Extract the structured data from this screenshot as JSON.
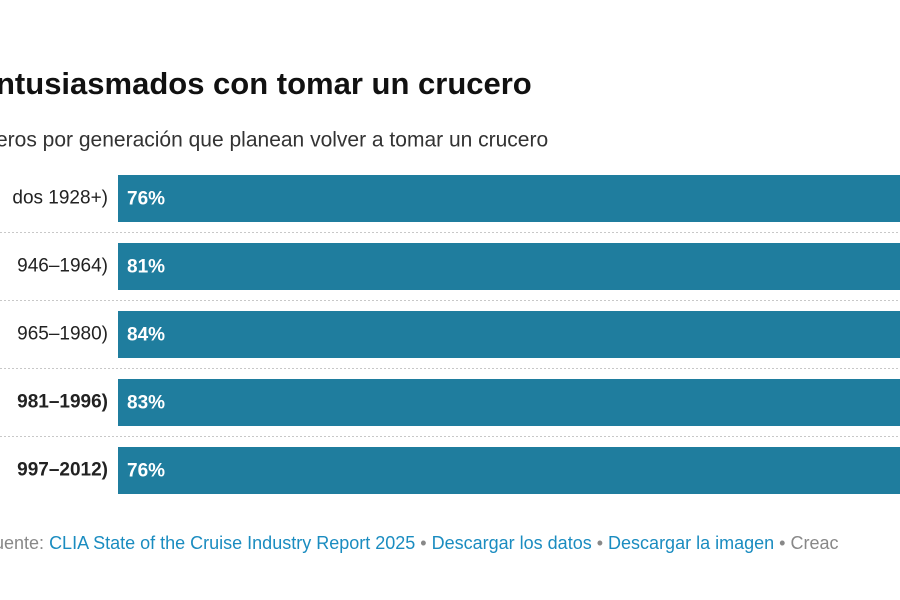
{
  "chart_data": {
    "type": "bar",
    "orientation": "horizontal",
    "title": "ntusiasmados con tomar un crucero",
    "subtitle": "eros por generación que planean volver a tomar un crucero",
    "categories": [
      "dos 1928+)",
      "946–1964)",
      "965–1980)",
      "981–1996)",
      "997–2012)"
    ],
    "values": [
      76,
      81,
      84,
      83,
      76
    ],
    "value_labels": [
      "76%",
      "81%",
      "84%",
      "83%",
      "76%"
    ],
    "color": "#1f7d9e"
  },
  "footer": {
    "source_label": "uente:",
    "source": "CLIA State of the Cruise Industry Report 2025",
    "separator": "•",
    "links": [
      "Descargar los datos",
      "Descargar la imagen"
    ],
    "credit": "Creac"
  }
}
